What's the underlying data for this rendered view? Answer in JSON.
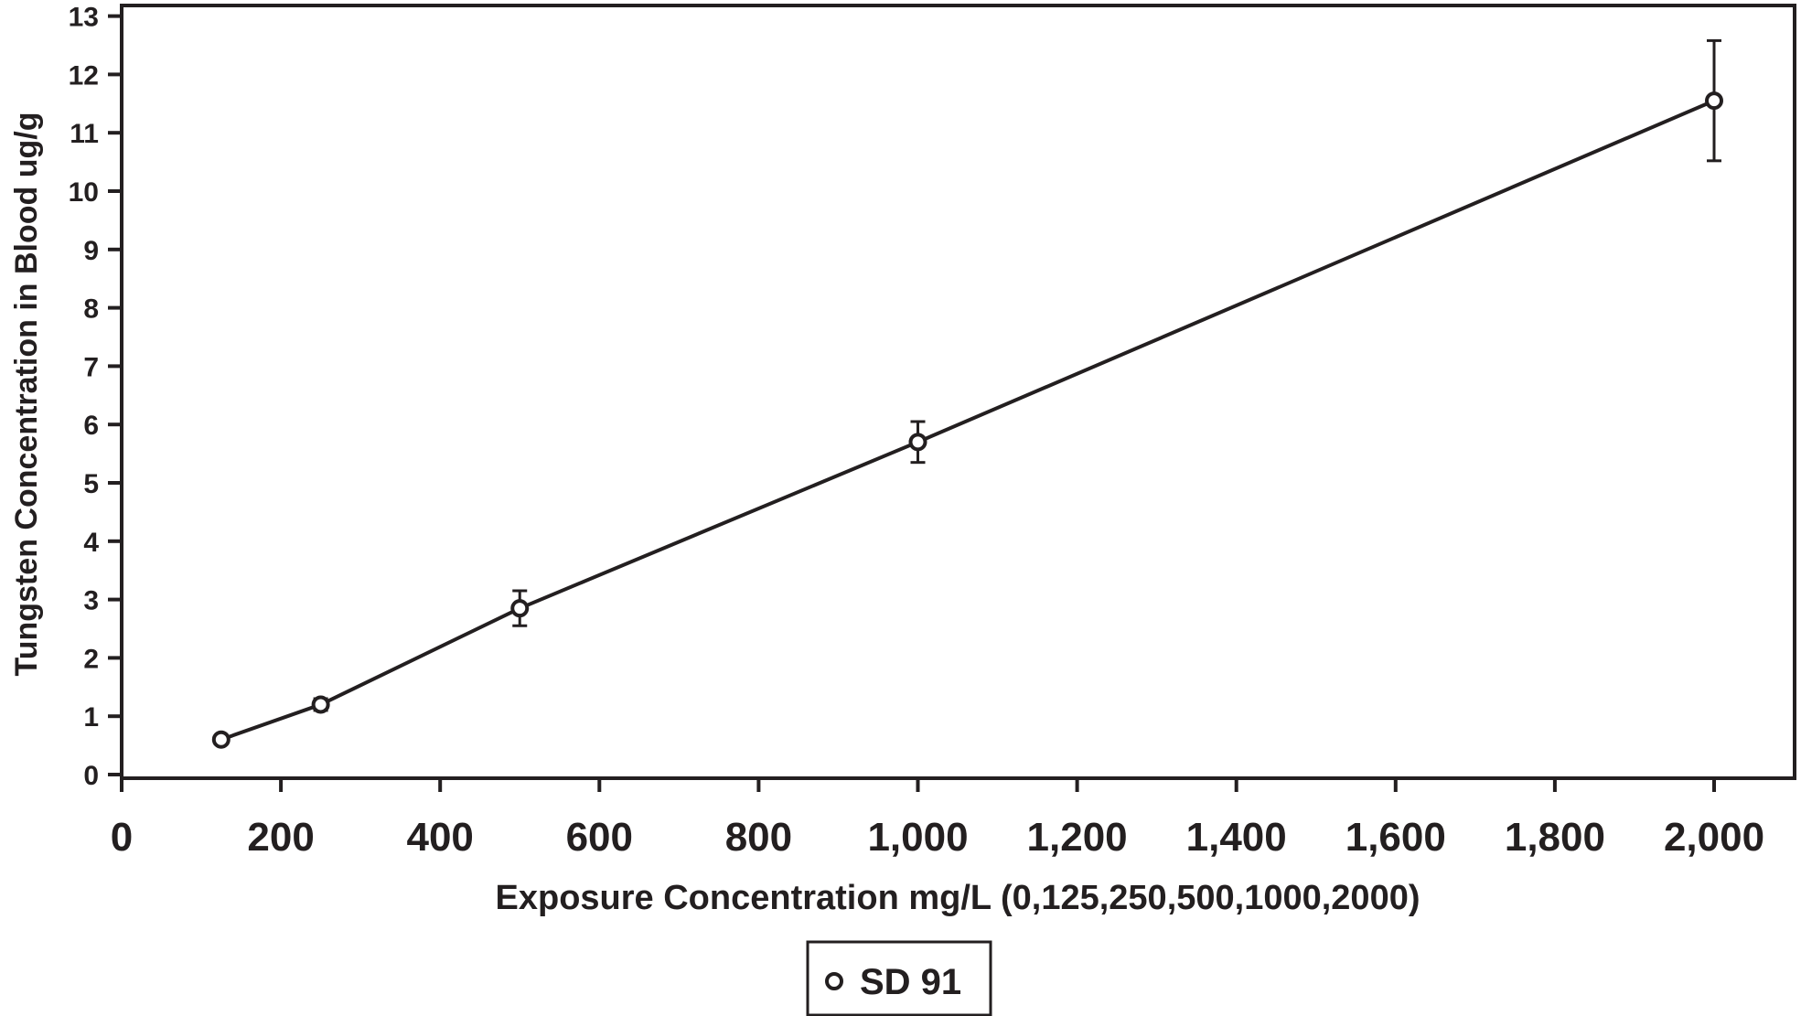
{
  "chart_data": {
    "type": "line",
    "title": "",
    "xlabel": "Exposure Concentration mg/L (0,125,250,500,1000,2000)",
    "ylabel": "Tungsten Concentration in Blood ug/g",
    "xlim": [
      0,
      2100
    ],
    "ylim": [
      0,
      13
    ],
    "x_ticks": [
      0,
      200,
      400,
      600,
      800,
      1000,
      1200,
      1400,
      1600,
      1800,
      2000
    ],
    "x_tick_labels": [
      "0",
      "200",
      "400",
      "600",
      "800",
      "1,000",
      "1,200",
      "1,400",
      "1,600",
      "1,800",
      "2,000"
    ],
    "y_ticks": [
      0,
      1,
      2,
      3,
      4,
      5,
      6,
      7,
      8,
      9,
      10,
      11,
      12,
      13
    ],
    "y_tick_labels": [
      "0",
      "1",
      "2",
      "3",
      "4",
      "5",
      "6",
      "7",
      "8",
      "9",
      "10",
      "11",
      "12",
      "13"
    ],
    "grid": false,
    "legend_position": "bottom-center",
    "series": [
      {
        "name": "SD 91",
        "color": "#231f20",
        "marker": "open-circle",
        "x": [
          125,
          250,
          500,
          1000,
          2000
        ],
        "y": [
          0.6,
          1.2,
          2.85,
          5.7,
          11.55
        ],
        "error": [
          0.03,
          0.1,
          0.3,
          0.35,
          1.03
        ]
      }
    ]
  }
}
